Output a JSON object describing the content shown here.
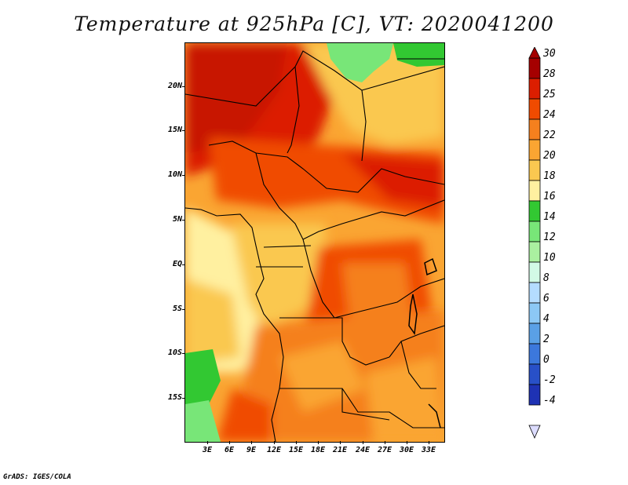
{
  "title": "Temperature at 925hPa [C], VT: 2020041200",
  "footer": "GrADS: IGES/COLA",
  "map": {
    "lat_labels": [
      "20N",
      "15N",
      "10N",
      "5N",
      "EQ",
      "5S",
      "10S",
      "15S"
    ],
    "lon_labels": [
      "3E",
      "6E",
      "9E",
      "12E",
      "15E",
      "18E",
      "21E",
      "24E",
      "27E",
      "30E",
      "33E"
    ]
  },
  "colorbar": {
    "labels": [
      "30",
      "28",
      "25",
      "24",
      "22",
      "20",
      "18",
      "16",
      "14",
      "12",
      "10",
      "8",
      "6",
      "4",
      "2",
      "0",
      "-2",
      "-4"
    ],
    "colors": [
      "#a50000",
      "#dc1e00",
      "#f04b00",
      "#f5801e",
      "#faa532",
      "#fac850",
      "#fff0a0",
      "#32c832",
      "#78e678",
      "#aaf0a0",
      "#d2fae6",
      "#b4dcff",
      "#8cc8f5",
      "#5aa0e6",
      "#3c78dc",
      "#2850c8",
      "#1e32b4",
      "#0a1478",
      "#dcdcff"
    ]
  }
}
